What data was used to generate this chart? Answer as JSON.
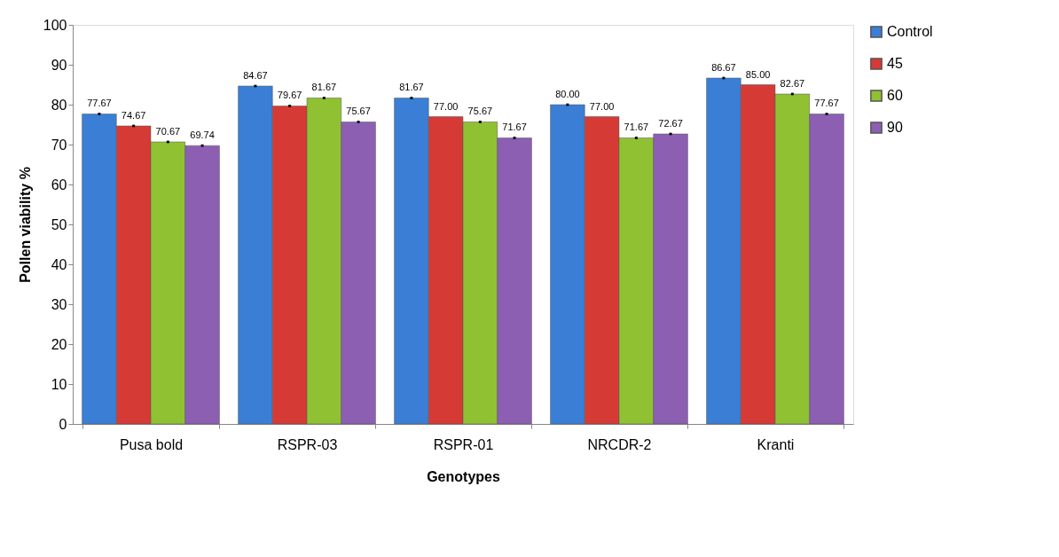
{
  "chart_data": {
    "type": "bar",
    "xlabel": "Genotypes",
    "ylabel": "Pollen viability %",
    "categories": [
      "Pusa bold",
      "RSPR-03",
      "RSPR-01",
      "NRCDR-2",
      "Kranti"
    ],
    "series": [
      {
        "name": "Control",
        "color": "#3a7fd5",
        "values": [
          77.67,
          84.67,
          81.67,
          80.0,
          86.67
        ],
        "value_labels": [
          "77.67",
          "84.67",
          "81.67",
          "80.00",
          "86.67"
        ],
        "errors": [
          0.3,
          0.3,
          0.3,
          0.3,
          0.3
        ]
      },
      {
        "name": "45",
        "color": "#d63a35",
        "values": [
          74.67,
          79.67,
          77.0,
          77.0,
          85.0
        ],
        "value_labels": [
          "74.67",
          "79.67",
          "77.00",
          "77.00",
          "85.00"
        ],
        "errors": [
          0.3,
          0.3,
          null,
          null,
          null
        ]
      },
      {
        "name": "60",
        "color": "#8fc132",
        "values": [
          70.67,
          81.67,
          75.67,
          71.67,
          82.67
        ],
        "value_labels": [
          "70.67",
          "81.67",
          "75.67",
          "71.67",
          "82.67"
        ],
        "errors": [
          0.3,
          0.3,
          0.3,
          0.3,
          0.3
        ]
      },
      {
        "name": "90",
        "color": "#8c5fb3",
        "values": [
          69.74,
          75.67,
          71.67,
          72.67,
          77.67
        ],
        "value_labels": [
          "69.74",
          "75.67",
          "71.67",
          "72.67",
          "77.67"
        ],
        "errors": [
          0.3,
          0.3,
          0.3,
          0.3,
          0.3
        ]
      }
    ],
    "ylim": [
      0,
      100
    ],
    "yticks": [
      0,
      10,
      20,
      30,
      40,
      50,
      60,
      70,
      80,
      90,
      100
    ],
    "legend": "right",
    "grid": false
  }
}
